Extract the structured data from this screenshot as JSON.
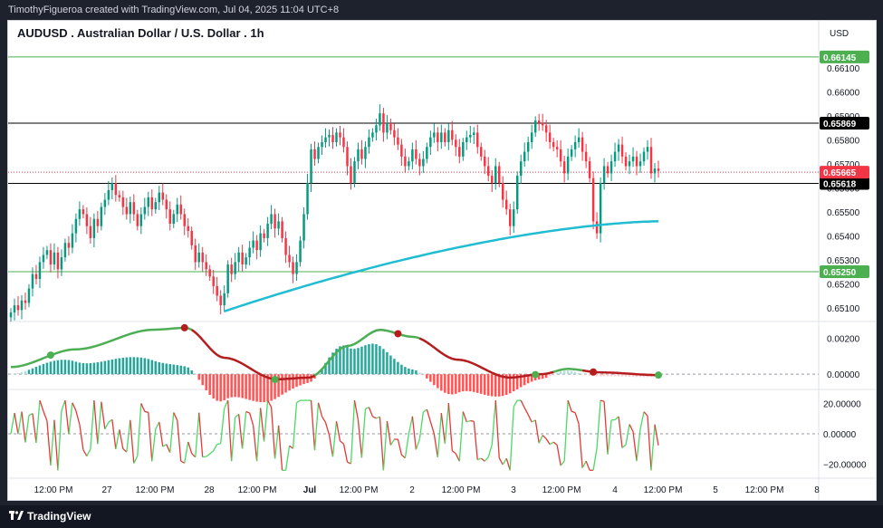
{
  "header": {
    "attribution": "TimothyFigueroa created with TradingView.com, Jul 04, 2025 11:04 UTC+8"
  },
  "footer": {
    "brand": "TradingView"
  },
  "colors": {
    "up": "#089981",
    "down": "#f23645",
    "ema": "#1fbcd2",
    "macd_line": "#2962ff",
    "signal_up": "#4caf50",
    "signal_down": "#b71c1c",
    "rsi_up": "#4cd964",
    "rsi_down": "#e53935",
    "support_line": "#4caf50",
    "pivot_line": "#000000"
  },
  "chart_data": {
    "type": "candlestick",
    "title": "AUDUSD . Australian Dollar / U.S. Dollar . 1h",
    "currency": "USD",
    "timeframe": "1h",
    "price_axis": {
      "ylim": [
        0.6505,
        0.6619
      ],
      "ticks": [
        "0.65100",
        "0.65200",
        "0.65300",
        "0.65400",
        "0.65500",
        "0.65600",
        "0.65700",
        "0.65800",
        "0.65900",
        "0.66000",
        "0.66100"
      ]
    },
    "horizontal_lines": [
      {
        "name": "resistance-green",
        "value": 0.66145,
        "label": "0.66145",
        "kind": "support"
      },
      {
        "name": "pivot-upper",
        "value": 0.65869,
        "label": "0.65869",
        "kind": "pivot"
      },
      {
        "name": "pivot-lower",
        "value": 0.65618,
        "label": "0.65618",
        "kind": "pivot"
      },
      {
        "name": "support-green",
        "value": 0.6525,
        "label": "0.65250",
        "kind": "support"
      }
    ],
    "last_price": {
      "value": 0.65665,
      "label": "0.65665"
    },
    "time_axis": {
      "labels": [
        "12:00 PM",
        "27",
        "12:00 PM",
        "28",
        "12:00 PM",
        "Jul",
        "12:00 PM",
        "2",
        "12:00 PM",
        "3",
        "12:00 PM",
        "4",
        "12:00 PM",
        "5",
        "12:00 PM",
        "8"
      ],
      "bold": [
        false,
        false,
        false,
        false,
        false,
        true,
        false,
        false,
        false,
        false,
        false,
        false,
        false,
        false,
        false,
        false
      ]
    },
    "candles_close": [
      0.6508,
      0.6511,
      0.6509,
      0.6513,
      0.6512,
      0.6518,
      0.6524,
      0.6522,
      0.6529,
      0.6532,
      0.6534,
      0.6528,
      0.6533,
      0.6526,
      0.6531,
      0.6537,
      0.6535,
      0.6541,
      0.6547,
      0.6551,
      0.6549,
      0.6544,
      0.6539,
      0.6547,
      0.6544,
      0.6552,
      0.6555,
      0.6559,
      0.6562,
      0.6557,
      0.6556,
      0.6552,
      0.6549,
      0.6554,
      0.6549,
      0.6544,
      0.6549,
      0.6552,
      0.6556,
      0.6551,
      0.6554,
      0.6558,
      0.6555,
      0.6551,
      0.6545,
      0.6549,
      0.6553,
      0.6549,
      0.6544,
      0.6542,
      0.6536,
      0.6529,
      0.6533,
      0.6529,
      0.6526,
      0.6523,
      0.6519,
      0.6515,
      0.6511,
      0.6516,
      0.6528,
      0.6524,
      0.6529,
      0.6533,
      0.6528,
      0.6531,
      0.6535,
      0.6538,
      0.6534,
      0.6541,
      0.6539,
      0.6545,
      0.6549,
      0.6543,
      0.6546,
      0.6539,
      0.6532,
      0.6529,
      0.6524,
      0.6529,
      0.6538,
      0.6549,
      0.6562,
      0.6576,
      0.6572,
      0.6577,
      0.6579,
      0.6581,
      0.6582,
      0.6579,
      0.6583,
      0.6581,
      0.6577,
      0.6569,
      0.6562,
      0.6571,
      0.6576,
      0.6572,
      0.6577,
      0.6581,
      0.6583,
      0.6586,
      0.6591,
      0.6583,
      0.6587,
      0.6584,
      0.6581,
      0.6578,
      0.6573,
      0.6569,
      0.6571,
      0.6576,
      0.6572,
      0.6569,
      0.6572,
      0.6577,
      0.6581,
      0.6583,
      0.6579,
      0.6583,
      0.6579,
      0.6584,
      0.658,
      0.6577,
      0.6573,
      0.6579,
      0.6581,
      0.6582,
      0.6583,
      0.6577,
      0.6573,
      0.6569,
      0.6565,
      0.6562,
      0.6569,
      0.6562,
      0.6555,
      0.6551,
      0.6544,
      0.6551,
      0.6565,
      0.6571,
      0.6575,
      0.6579,
      0.6583,
      0.6588,
      0.6587,
      0.6586,
      0.6583,
      0.6579,
      0.6577,
      0.6576,
      0.6571,
      0.6566,
      0.6573,
      0.6576,
      0.6579,
      0.6581,
      0.6575,
      0.6571,
      0.6564,
      0.6546,
      0.6541,
      0.6562,
      0.6569,
      0.6566,
      0.6571,
      0.6575,
      0.6578,
      0.6573,
      0.6569,
      0.6571,
      0.6573,
      0.6569,
      0.6571,
      0.6575,
      0.6577,
      0.6566,
      0.6568,
      0.6567
    ]
  },
  "macd_pane": {
    "ticks": [
      "0.00200",
      "0.00000"
    ],
    "ylim": [
      -0.0006,
      0.0029
    ]
  },
  "rsi_pane": {
    "ticks": [
      "20.00000",
      "0.00000",
      "−20.00000"
    ],
    "ylim": [
      -28,
      28
    ]
  }
}
